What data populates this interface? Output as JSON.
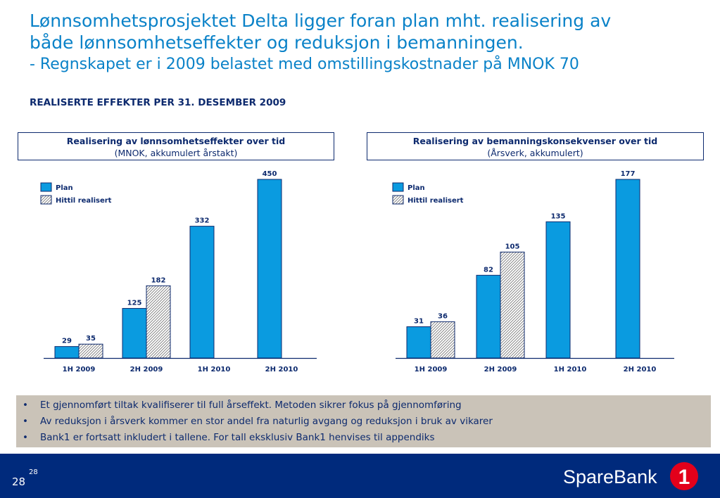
{
  "title": {
    "line1": "Lønnsomhetsprosjektet Delta ligger foran plan mht. realisering av",
    "line2": "både lønnsomhetseffekter og reduksjon i bemanningen.",
    "line3": "- Regnskapet er i 2009 belastet med omstillingskostnader på MNOK 70"
  },
  "subheading": "REALISERTE EFFEKTER PER 31. DESEMBER 2009",
  "chart_data": [
    {
      "type": "bar",
      "title": "Realisering av lønnsomhetseffekter over tid",
      "subtitle": "(MNOK, akkumulert årstakt)",
      "categories": [
        "1H 2009",
        "2H 2009",
        "1H 2010",
        "2H 2010"
      ],
      "series": [
        {
          "name": "Plan",
          "values": [
            29,
            125,
            332,
            450
          ]
        },
        {
          "name": "Hittil realisert",
          "values": [
            35,
            182,
            null,
            null
          ]
        }
      ],
      "ylim": [
        0,
        450
      ],
      "legend": "top-left",
      "grid": false,
      "colors": {
        "plan": "#0a9be0",
        "realized_pattern": "#7a7a7a"
      }
    },
    {
      "type": "bar",
      "title": "Realisering av bemanningskonsekvenser over tid",
      "subtitle": "(Årsverk, akkumulert)",
      "categories": [
        "1H 2009",
        "2H 2009",
        "1H 2010",
        "2H 2010"
      ],
      "series": [
        {
          "name": "Plan",
          "values": [
            31,
            82,
            135,
            177
          ]
        },
        {
          "name": "Hittil realisert",
          "values": [
            36,
            105,
            null,
            null
          ]
        }
      ],
      "ylim": [
        0,
        177
      ],
      "legend": "top-left",
      "grid": false,
      "colors": {
        "plan": "#0a9be0",
        "realized_pattern": "#7a7a7a"
      }
    }
  ],
  "bullets": [
    "Et gjennomført tiltak kvalifiserer til full årseffekt. Metoden sikrer fokus på gjennomføring",
    "Av reduksjon i årsverk kommer en stor andel fra naturlig avgang og reduksjon i bruk av vikarer",
    "Bank1 er fortsatt inkludert i tallene. For tall eksklusiv Bank1 henvises til appendiks"
  ],
  "bullet_marker": "•",
  "footer": {
    "page_number": "28",
    "page_superscript": "28",
    "logo_text": "SpareBank",
    "logo_mark": "1"
  },
  "colors": {
    "title": "#0a82c8",
    "navy": "#0d2a6e",
    "footer_bg": "#002a7c",
    "bullet_bg": "#cac3b8",
    "logo_red": "#e3001b"
  }
}
